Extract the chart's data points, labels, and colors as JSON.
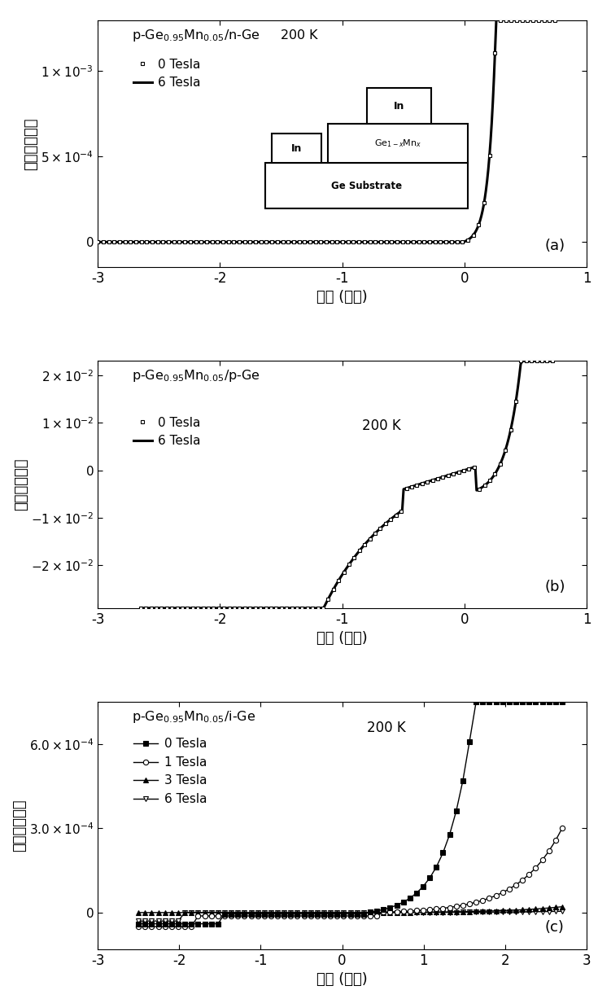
{
  "panel_a": {
    "xlim": [
      -3,
      1
    ],
    "ylim": [
      -0.00015,
      0.0013
    ],
    "xticks": [
      -3,
      -2,
      -1,
      0,
      1
    ],
    "yticks": [
      0,
      0.0005,
      0.001
    ],
    "panel_label": "(a)"
  },
  "panel_b": {
    "xlim": [
      -3,
      1
    ],
    "ylim": [
      -0.029,
      0.023
    ],
    "xticks": [
      -3,
      -2,
      -1,
      0,
      1
    ],
    "yticks": [
      -0.02,
      -0.01,
      0,
      0.01,
      0.02
    ],
    "panel_label": "(b)"
  },
  "panel_c": {
    "xlim": [
      -3,
      3
    ],
    "ylim": [
      -0.00013,
      0.00075
    ],
    "xticks": [
      -3,
      -2,
      -1,
      0,
      1,
      2,
      3
    ],
    "yticks": [
      0,
      0.0003,
      0.0006
    ],
    "panel_label": "(c)"
  }
}
